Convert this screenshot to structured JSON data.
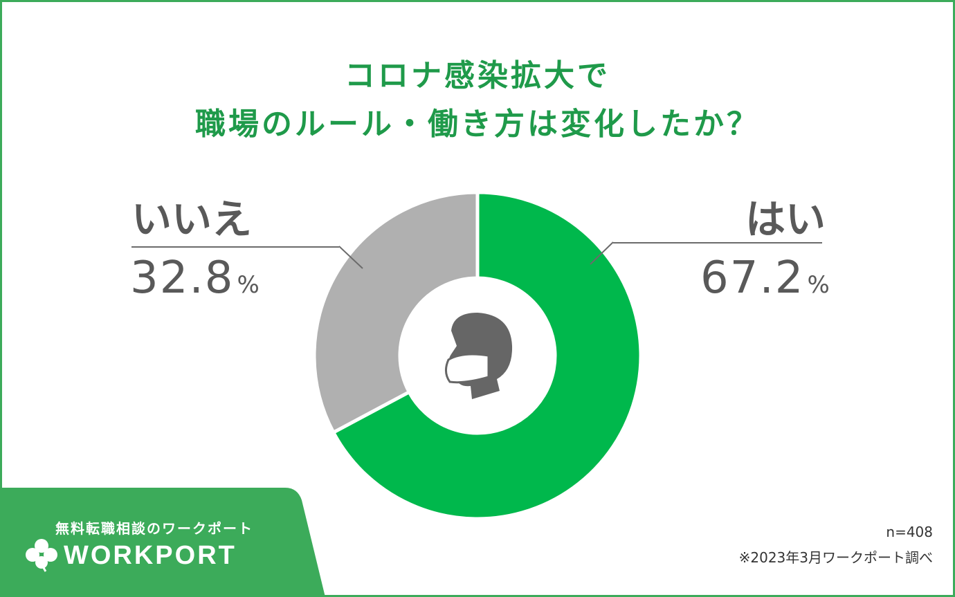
{
  "title": {
    "line1": "コロナ感染拡大で",
    "line2": "職場のルール・働き方は変化したか？"
  },
  "chart_data": {
    "type": "pie",
    "categories": [
      "はい",
      "いいえ"
    ],
    "values": [
      67.2,
      32.8
    ],
    "value_unit": "%",
    "colors": [
      "#00b84c",
      "#b0b0b0"
    ],
    "center_icon": "masked-face-icon"
  },
  "labels": {
    "yes": {
      "name": "はい",
      "value": "67.2",
      "unit": "%"
    },
    "no": {
      "name": "いいえ",
      "value": "32.8",
      "unit": "%"
    }
  },
  "brand": {
    "tagline": "無料転職相談のワークポート",
    "logo_text": "WORKPORT",
    "color": "#3cab5a"
  },
  "notes": {
    "sample": "n=408",
    "source": "※2023年3月ワークポート調べ"
  }
}
